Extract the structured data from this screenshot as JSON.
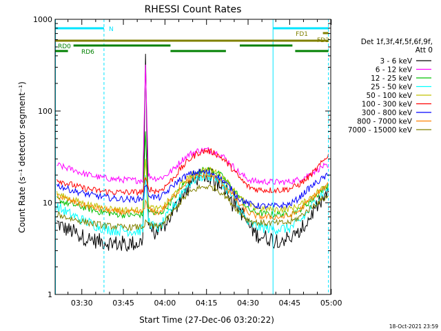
{
  "chart_data": {
    "type": "line",
    "title": "RHESSI Count Rates",
    "xlabel": "Start Time (27-Dec-06 03:20:22)",
    "ylabel": "Count Rate (s⁻¹ detector segment⁻¹)",
    "y_scale": "log",
    "ylim": [
      1,
      1000
    ],
    "xlim": [
      "03:20:22",
      "04:59:50"
    ],
    "x_ticks": [
      "03:30",
      "03:45",
      "04:00",
      "04:15",
      "04:30",
      "04:45",
      "05:00"
    ],
    "y_ticks": [
      "1",
      "10",
      "100",
      "1000"
    ],
    "grid": false,
    "legend_position": "right",
    "legend_header": [
      "Det 1f,3f,4f,5f,6f,9f,",
      "Att 0"
    ],
    "timestamp": "18-Oct-2021 23:59",
    "x": [
      "03:21",
      "03:24",
      "03:27",
      "03:30",
      "03:33",
      "03:36",
      "03:39",
      "03:42",
      "03:45",
      "03:48",
      "03:50",
      "03:52",
      "03:53",
      "03:54",
      "03:56",
      "03:58",
      "04:00",
      "04:03",
      "04:06",
      "04:09",
      "04:12",
      "04:15",
      "04:18",
      "04:21",
      "04:24",
      "04:27",
      "04:30",
      "04:33",
      "04:36",
      "04:39",
      "04:42",
      "04:45",
      "04:48",
      "04:51",
      "04:54",
      "04:57",
      "04:59"
    ],
    "series": [
      {
        "name": "3 - 6 keV",
        "color": "#000000",
        "values": [
          6.0,
          5.2,
          4.8,
          4.3,
          4.0,
          3.8,
          3.7,
          3.6,
          3.6,
          3.6,
          3.6,
          3.8,
          420,
          6.0,
          4.8,
          4.6,
          5.8,
          8.0,
          12.0,
          16.0,
          19.0,
          20.0,
          19.0,
          16.0,
          12.0,
          8.5,
          5.8,
          4.5,
          4.2,
          4.0,
          4.0,
          4.1,
          4.5,
          6.0,
          8.5,
          11.0,
          13.0
        ]
      },
      {
        "name": "6 - 12 keV",
        "color": "#ff00ff",
        "values": [
          26,
          24,
          23,
          21,
          20,
          19,
          18.5,
          18,
          17.8,
          17.6,
          17.5,
          17.8,
          320,
          20,
          18.5,
          18.5,
          19.5,
          23,
          29,
          34,
          37,
          38,
          36,
          32,
          26,
          21,
          18,
          17,
          17,
          16.8,
          16.8,
          17,
          17.8,
          19.5,
          22,
          25,
          24
        ]
      },
      {
        "name": "12 - 25 keV",
        "color": "#00c000",
        "values": [
          11,
          10,
          9.5,
          9.0,
          8.5,
          8.0,
          7.8,
          7.5,
          7.4,
          7.3,
          7.3,
          7.5,
          60,
          8.5,
          7.6,
          7.5,
          8.5,
          11,
          15,
          19,
          22,
          23,
          22,
          19,
          15,
          11.5,
          8.5,
          7.8,
          7.6,
          7.5,
          7.5,
          7.6,
          8.2,
          9.5,
          11.5,
          14,
          16
        ]
      },
      {
        "name": "25 - 50 keV",
        "color": "#00ffff",
        "values": [
          9.0,
          8.0,
          7.2,
          6.5,
          6.0,
          5.5,
          5.2,
          5.0,
          5.0,
          4.9,
          4.9,
          5.1,
          20,
          6.5,
          5.4,
          5.3,
          6.5,
          9.0,
          13.0,
          16.5,
          19.0,
          20.0,
          19.0,
          16.0,
          12.0,
          8.5,
          6.0,
          5.5,
          5.3,
          5.2,
          5.2,
          5.3,
          6.0,
          7.5,
          10.0,
          13.0,
          15.0
        ]
      },
      {
        "name": "50 - 100 keV",
        "color": "#c0c000",
        "values": [
          12.5,
          11.5,
          10.8,
          10.0,
          9.5,
          9.0,
          8.8,
          8.5,
          8.4,
          8.3,
          8.3,
          8.5,
          30,
          9.5,
          8.6,
          8.5,
          9.5,
          12.0,
          16.0,
          19.5,
          22.0,
          23.0,
          22.0,
          19.0,
          15.0,
          11.5,
          9.5,
          8.8,
          8.6,
          8.5,
          8.5,
          8.6,
          9.2,
          10.5,
          12.5,
          14.5,
          16.0
        ]
      },
      {
        "name": "100 - 300 keV",
        "color": "#ff0000",
        "values": [
          18,
          16.5,
          15.5,
          14.5,
          14.0,
          13.5,
          13.2,
          13.0,
          13.0,
          13.0,
          13.0,
          13.3,
          18,
          14.5,
          13.5,
          13.5,
          15.0,
          18.5,
          24,
          30,
          35,
          37,
          35,
          30,
          24,
          18.5,
          15.0,
          14.0,
          13.8,
          13.7,
          13.8,
          14.2,
          15.5,
          18,
          22,
          28,
          34
        ]
      },
      {
        "name": "300 - 800 keV",
        "color": "#0000ff",
        "values": [
          15.5,
          14.5,
          13.5,
          12.8,
          12.2,
          11.8,
          11.4,
          11.1,
          11.0,
          10.9,
          10.9,
          11.2,
          16,
          12.5,
          11.5,
          11.4,
          12.5,
          15.5,
          18.5,
          20.5,
          21.5,
          21.5,
          20.5,
          17.5,
          14.0,
          11.0,
          9.8,
          9.3,
          9.2,
          9.2,
          9.3,
          9.6,
          11.0,
          13.5,
          16.0,
          18.5,
          20.0
        ]
      },
      {
        "name": "800 - 7000 keV",
        "color": "#ff8000",
        "values": [
          12.0,
          11.0,
          10.2,
          9.5,
          9.0,
          8.6,
          8.3,
          8.0,
          7.9,
          7.8,
          7.8,
          8.0,
          10,
          8.5,
          7.9,
          7.9,
          9.0,
          11.5,
          15.0,
          18.0,
          19.5,
          20.0,
          19.0,
          16.0,
          12.5,
          9.5,
          7.8,
          7.2,
          7.0,
          7.0,
          7.0,
          7.2,
          8.0,
          9.8,
          12.0,
          14.0,
          15.5
        ]
      },
      {
        "name": "7000 - 15000 keV",
        "color": "#808000",
        "values": [
          7.5,
          7.0,
          6.6,
          6.3,
          6.0,
          5.8,
          5.6,
          5.5,
          5.4,
          5.4,
          5.4,
          5.5,
          6,
          5.8,
          5.5,
          5.5,
          6.2,
          8.0,
          10.5,
          13.0,
          14.5,
          15.0,
          14.5,
          12.5,
          10.0,
          7.8,
          6.5,
          6.1,
          6.0,
          6.0,
          6.0,
          6.1,
          6.8,
          8.0,
          9.5,
          11.0,
          12.0
        ]
      }
    ],
    "annotations": {
      "N": {
        "label": "N",
        "color": "#00e5ff",
        "intervals": [
          [
            "03:20:22",
            "03:38"
          ],
          [
            "04:39",
            "04:59"
          ]
        ]
      },
      "FD1": {
        "label": "FD1",
        "color": "#808000",
        "intervals": [
          [
            "04:57",
            "04:59"
          ]
        ]
      },
      "FD2": {
        "label": "FD2",
        "color": "#808000",
        "intervals": [
          [
            "03:20:22",
            "04:59"
          ]
        ]
      },
      "RD0": {
        "label": "RD0",
        "color": "#008000",
        "intervals": [
          [
            "03:27",
            "04:02"
          ],
          [
            "04:27",
            "04:46"
          ]
        ]
      },
      "RD6": {
        "label": "RD6",
        "color": "#008000",
        "intervals": [
          [
            "03:20:22",
            "03:25"
          ],
          [
            "04:02",
            "04:22"
          ],
          [
            "04:47",
            "04:59"
          ]
        ]
      },
      "solid_markers": [
        "03:20:30",
        "04:39"
      ],
      "dashed_markers": [
        "03:38",
        "04:59"
      ]
    }
  }
}
